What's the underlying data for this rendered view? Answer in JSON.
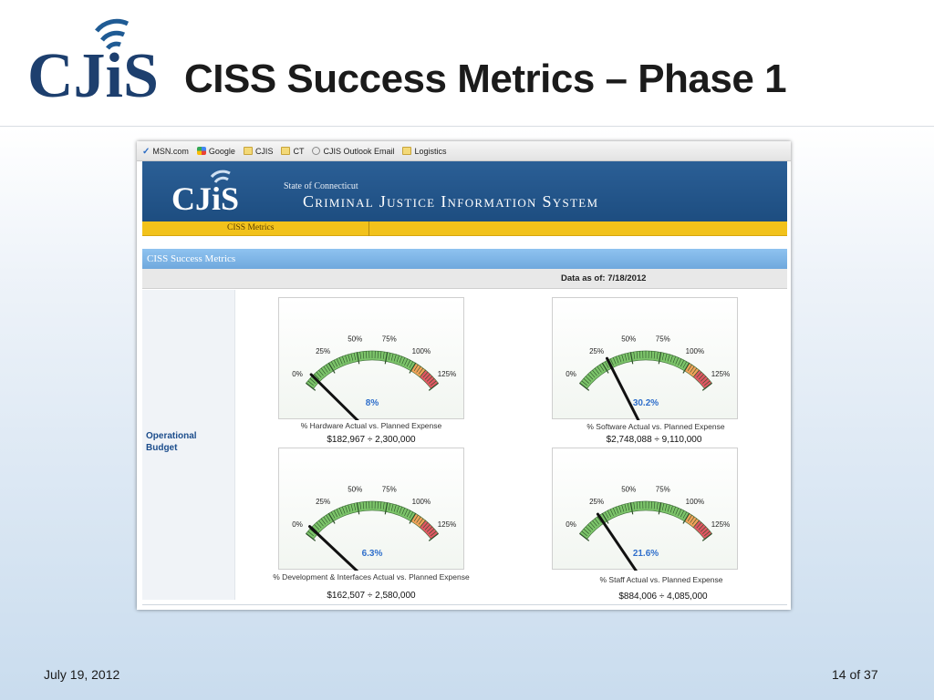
{
  "slide": {
    "title": "CISS Success Metrics – Phase 1",
    "logo_text": "CJiS",
    "date": "July 19, 2012",
    "page": "14 of 37"
  },
  "browser": {
    "bookmarks": [
      {
        "label": "MSN.com",
        "icon": "msn-icon"
      },
      {
        "label": "Google",
        "icon": "google-icon"
      },
      {
        "label": "CJIS",
        "icon": "folder-icon"
      },
      {
        "label": "CT",
        "icon": "folder-icon"
      },
      {
        "label": "CJIS Outlook Email",
        "icon": "globe-icon"
      },
      {
        "label": "Logistics",
        "icon": "folder-icon"
      }
    ]
  },
  "site": {
    "logo_text": "CJiS",
    "state_line": "State of Connecticut",
    "system_name": "Criminal Justice Information System",
    "nav_tab": "CISS Metrics",
    "section_title": "CISS Success Metrics",
    "data_as_of": "Data as of: 7/18/2012",
    "side_label_line1": "Operational",
    "side_label_line2": "Budget"
  },
  "gauge_scale": {
    "ticks": [
      "0%",
      "25%",
      "50%",
      "75%",
      "100%",
      "125%"
    ],
    "max_percent": 125,
    "colors": {
      "green": "#7cc46a",
      "orange": "#f0a25a",
      "red": "#e05763",
      "value_text": "#2f6fcb",
      "needle": "#111111"
    }
  },
  "gauges": [
    {
      "value": 8,
      "value_label": "8%",
      "label": "% Hardware Actual vs. Planned Expense",
      "calc": "$182,967 ÷ 2,300,000"
    },
    {
      "value": 30.2,
      "value_label": "30.2%",
      "label": "% Software Actual vs. Planned Expense",
      "calc": "$2,748,088 ÷ 9,110,000"
    },
    {
      "value": 6.3,
      "value_label": "6.3%",
      "label": "% Development & Interfaces Actual vs. Planned Expense",
      "calc": "$162,507 ÷ 2,580,000"
    },
    {
      "value": 21.6,
      "value_label": "21.6%",
      "label": "% Staff Actual vs. Planned Expense",
      "calc": "$884,006 ÷ 4,085,000"
    }
  ]
}
